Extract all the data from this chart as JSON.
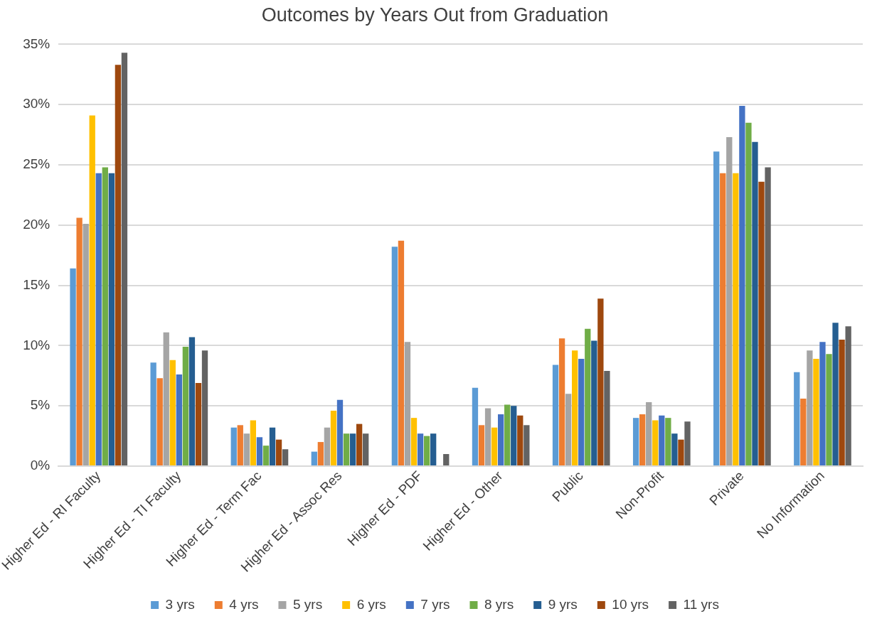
{
  "chart_data": {
    "type": "bar",
    "title": "Outcomes by Years Out from Graduation",
    "categories": [
      "Higher Ed - RI Faculty",
      "Higher Ed - TI Faculty",
      "Higher Ed - Term Fac",
      "Higher Ed - Assoc Res",
      "Higher Ed - PDF",
      "Higher Ed - Other",
      "Public",
      "Non-Profit",
      "Private",
      "No Information"
    ],
    "series": [
      {
        "name": "3 yrs",
        "color": "#5b9bd5",
        "values": [
          16.4,
          8.6,
          3.2,
          1.2,
          18.2,
          6.5,
          8.4,
          4.0,
          26.1,
          7.8
        ]
      },
      {
        "name": "4 yrs",
        "color": "#ed7d31",
        "values": [
          20.6,
          7.3,
          3.4,
          2.0,
          18.7,
          3.4,
          10.6,
          4.3,
          24.3,
          5.6
        ]
      },
      {
        "name": "5 yrs",
        "color": "#a5a5a5",
        "values": [
          20.1,
          11.1,
          2.7,
          3.2,
          10.3,
          4.8,
          6.0,
          5.3,
          27.3,
          9.6
        ]
      },
      {
        "name": "6 yrs",
        "color": "#ffc000",
        "values": [
          29.1,
          8.8,
          3.8,
          4.6,
          4.0,
          3.2,
          9.6,
          3.8,
          24.3,
          8.9
        ]
      },
      {
        "name": "7 yrs",
        "color": "#4472c4",
        "values": [
          24.3,
          7.6,
          2.4,
          5.5,
          2.7,
          4.3,
          8.9,
          4.2,
          29.9,
          10.3
        ]
      },
      {
        "name": "8 yrs",
        "color": "#70ad47",
        "values": [
          24.8,
          9.9,
          1.7,
          2.7,
          2.5,
          5.1,
          11.4,
          4.0,
          28.5,
          9.3
        ]
      },
      {
        "name": "9 yrs",
        "color": "#255e91",
        "values": [
          24.3,
          10.7,
          3.2,
          2.7,
          2.7,
          5.0,
          10.4,
          2.7,
          26.9,
          11.9
        ]
      },
      {
        "name": "10 yrs",
        "color": "#9e480e",
        "values": [
          33.3,
          6.9,
          2.2,
          3.5,
          0,
          4.2,
          13.9,
          2.2,
          23.6,
          10.5
        ]
      },
      {
        "name": "11 yrs",
        "color": "#636363",
        "values": [
          34.3,
          9.6,
          1.4,
          2.7,
          1.0,
          3.4,
          7.9,
          3.7,
          24.8,
          11.6
        ]
      }
    ],
    "ylim": [
      0,
      35
    ],
    "yticks": [
      {
        "value": 0,
        "label": "0%"
      },
      {
        "value": 5,
        "label": "5%"
      },
      {
        "value": 10,
        "label": "10%"
      },
      {
        "value": 15,
        "label": "15%"
      },
      {
        "value": 20,
        "label": "20%"
      },
      {
        "value": 25,
        "label": "25%"
      },
      {
        "value": 30,
        "label": "30%"
      },
      {
        "value": 35,
        "label": "35%"
      }
    ],
    "grid": "y",
    "legend": "bottom"
  }
}
